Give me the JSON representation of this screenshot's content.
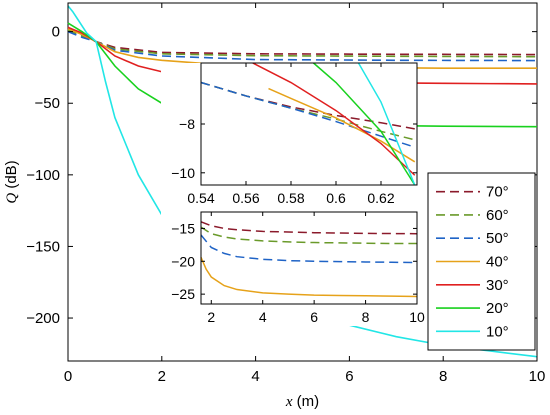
{
  "chart_data": [
    {
      "id": "main",
      "type": "line",
      "title": "",
      "xlabel": "x (m)",
      "xlabel_var": "x",
      "xlabel_unit": " (m)",
      "ylabel": "Q (dB)",
      "ylabel_var": "Q",
      "ylabel_unit": " (dB)",
      "xlim": [
        0,
        10
      ],
      "ylim": [
        -230,
        20
      ],
      "xticks": [
        0,
        2,
        4,
        6,
        8,
        10
      ],
      "xtick_labels": [
        "0",
        "2",
        "4",
        "6",
        "8",
        "10"
      ],
      "yticks": [
        0,
        -50,
        -100,
        -150,
        -200
      ],
      "ytick_labels": [
        "0",
        "−50",
        "−100",
        "−150",
        "−200"
      ],
      "grid": false,
      "legend_position": "right",
      "series": [
        {
          "name": "70°",
          "color": "#8b1a2b",
          "dash": "dashed",
          "x": [
            0,
            0.3,
            0.6,
            1.0,
            2.0,
            4.0,
            7.0,
            10.0
          ],
          "y": [
            2,
            -2,
            -7,
            -11,
            -14.5,
            -15.5,
            -15.8,
            -16
          ]
        },
        {
          "name": "60°",
          "color": "#6a9a2a",
          "dash": "dashed",
          "x": [
            0,
            0.3,
            0.6,
            1.0,
            2.0,
            4.0,
            7.0,
            10.0
          ],
          "y": [
            1,
            -3,
            -7,
            -12,
            -15.5,
            -16.8,
            -17.2,
            -17.5
          ]
        },
        {
          "name": "50°",
          "color": "#1f63c6",
          "dash": "dashed",
          "x": [
            0,
            0.3,
            0.6,
            1.0,
            2.0,
            4.0,
            7.0,
            10.0
          ],
          "y": [
            0,
            -4,
            -7,
            -13,
            -17,
            -19.5,
            -20,
            -20.2
          ]
        },
        {
          "name": "40°",
          "color": "#e6a21a",
          "dash": "solid",
          "x": [
            0,
            0.3,
            0.6,
            1.0,
            1.5,
            2.0,
            3.0,
            4.0,
            6.0,
            8.0,
            10.0
          ],
          "y": [
            2,
            -2,
            -7,
            -14,
            -18,
            -20,
            -22.5,
            -24,
            -25,
            -25.5,
            -25.5
          ]
        },
        {
          "name": "30°",
          "color": "#e02020",
          "dash": "solid",
          "x": [
            0,
            0.3,
            0.6,
            1.0,
            1.5,
            2.0,
            3.0,
            4.0,
            5.0,
            6.0,
            7.0,
            8.0,
            9.0,
            10.0
          ],
          "y": [
            3,
            -1,
            -7,
            -17,
            -24,
            -28,
            -31.5,
            -33.5,
            -34.5,
            -35.3,
            -35.8,
            -36.1,
            -36.3,
            -36.5
          ]
        },
        {
          "name": "20°",
          "color": "#19d11e",
          "dash": "solid",
          "x": [
            0,
            0.3,
            0.6,
            1.0,
            1.5,
            2.0,
            2.5,
            3.0,
            4.0,
            5.0,
            6.0,
            7.0,
            8.0,
            9.0,
            10.0
          ],
          "y": [
            6,
            0,
            -7,
            -24,
            -40,
            -50,
            -56,
            -59,
            -62,
            -64,
            -65,
            -65.7,
            -66,
            -66.2,
            -66.4
          ]
        },
        {
          "name": "10°",
          "color": "#22e6e6",
          "dash": "solid",
          "x": [
            0,
            0.1,
            0.2,
            0.3,
            0.4,
            0.5,
            0.6,
            0.8,
            1.0,
            1.5,
            2.0,
            2.5,
            3.0,
            4.0,
            5.0,
            6.0,
            7.0,
            8.0,
            9.0,
            10.0
          ],
          "y": [
            18,
            14,
            9,
            4,
            -1,
            -4,
            -7,
            -35,
            -60,
            -100,
            -128,
            -148,
            -162,
            -182,
            -195,
            -205,
            -213,
            -219,
            -223,
            -227
          ]
        }
      ]
    },
    {
      "id": "inset-upper",
      "type": "line",
      "xlim": [
        0.54,
        0.636
      ],
      "ylim": [
        -10.5,
        -5.5
      ],
      "xticks": [
        0.54,
        0.56,
        0.58,
        0.6,
        0.62
      ],
      "xtick_labels": [
        "0.54",
        "0.56",
        "0.58",
        "0.6",
        "0.62"
      ],
      "yticks": [
        -8,
        -10
      ],
      "ytick_labels": [
        "−8",
        "−10"
      ],
      "series": [
        {
          "name": "70°",
          "x": [
            0.54,
            0.56,
            0.58,
            0.6,
            0.62,
            0.635
          ],
          "y": [
            -6.3,
            -6.85,
            -7.3,
            -7.65,
            -7.95,
            -8.2
          ]
        },
        {
          "name": "60°",
          "x": [
            0.54,
            0.56,
            0.58,
            0.6,
            0.62,
            0.635
          ],
          "y": [
            -6.3,
            -6.85,
            -7.35,
            -7.8,
            -8.3,
            -8.65
          ]
        },
        {
          "name": "50°",
          "x": [
            0.54,
            0.56,
            0.58,
            0.6,
            0.62,
            0.635
          ],
          "y": [
            -6.3,
            -6.85,
            -7.35,
            -7.9,
            -8.5,
            -8.95
          ]
        },
        {
          "name": "40°",
          "x": [
            0.57,
            0.58,
            0.6,
            0.62,
            0.635
          ],
          "y": [
            -6.55,
            -6.95,
            -7.75,
            -8.7,
            -9.55
          ]
        },
        {
          "name": "30°",
          "x": [
            0.563,
            0.58,
            0.6,
            0.62,
            0.635
          ],
          "y": [
            -5.5,
            -6.3,
            -7.45,
            -8.8,
            -10.1
          ]
        },
        {
          "name": "20°",
          "x": [
            0.59,
            0.6,
            0.62,
            0.635
          ],
          "y": [
            -5.5,
            -6.3,
            -8.3,
            -10.5
          ]
        },
        {
          "name": "10°",
          "x": [
            0.61,
            0.62,
            0.635
          ],
          "y": [
            -5.5,
            -7.1,
            -10.5
          ]
        }
      ]
    },
    {
      "id": "inset-lower",
      "type": "line",
      "xlim": [
        1.6,
        10
      ],
      "ylim": [
        -26.5,
        -12.5
      ],
      "xticks": [
        2,
        4,
        6,
        8,
        10
      ],
      "xtick_labels": [
        "2",
        "4",
        "6",
        "8",
        "10"
      ],
      "yticks": [
        -15,
        -20,
        -25
      ],
      "ytick_labels": [
        "−15",
        "−20",
        "−25"
      ],
      "series": [
        {
          "name": "70°",
          "x": [
            1.6,
            2.0,
            2.5,
            3.0,
            4.0,
            5.0,
            6.0,
            7.0,
            8.0,
            9.0,
            10.0
          ],
          "y": [
            -14.0,
            -14.6,
            -15.0,
            -15.2,
            -15.45,
            -15.55,
            -15.65,
            -15.7,
            -15.75,
            -15.78,
            -15.8
          ]
        },
        {
          "name": "60°",
          "x": [
            1.6,
            2.0,
            2.5,
            3.0,
            4.0,
            5.0,
            6.0,
            7.0,
            8.0,
            9.0,
            10.0
          ],
          "y": [
            -14.8,
            -15.8,
            -16.3,
            -16.6,
            -16.9,
            -17.05,
            -17.15,
            -17.2,
            -17.25,
            -17.3,
            -17.3
          ]
        },
        {
          "name": "50°",
          "x": [
            1.6,
            2.0,
            2.5,
            3.0,
            4.0,
            5.0,
            6.0,
            7.0,
            8.0,
            9.0,
            10.0
          ],
          "y": [
            -16.0,
            -17.9,
            -18.8,
            -19.3,
            -19.7,
            -19.9,
            -20.0,
            -20.05,
            -20.1,
            -20.15,
            -20.2
          ]
        },
        {
          "name": "40°",
          "x": [
            1.6,
            1.8,
            2.0,
            2.5,
            3.0,
            4.0,
            5.0,
            6.0,
            7.0,
            8.0,
            9.0,
            10.0
          ],
          "y": [
            -19.4,
            -21.2,
            -22.4,
            -23.7,
            -24.3,
            -24.8,
            -25.0,
            -25.15,
            -25.2,
            -25.25,
            -25.3,
            -25.35
          ]
        }
      ]
    }
  ],
  "inset_tick_labels": {
    "upper_x": [
      "0.54",
      "0.56",
      "0.58",
      "0.6",
      "0.62"
    ],
    "upper_y": [
      "−8",
      "−10"
    ],
    "lower_x": [
      "2",
      "4",
      "6",
      "8",
      "10"
    ],
    "lower_y": [
      "−15",
      "−20",
      "−25"
    ]
  }
}
